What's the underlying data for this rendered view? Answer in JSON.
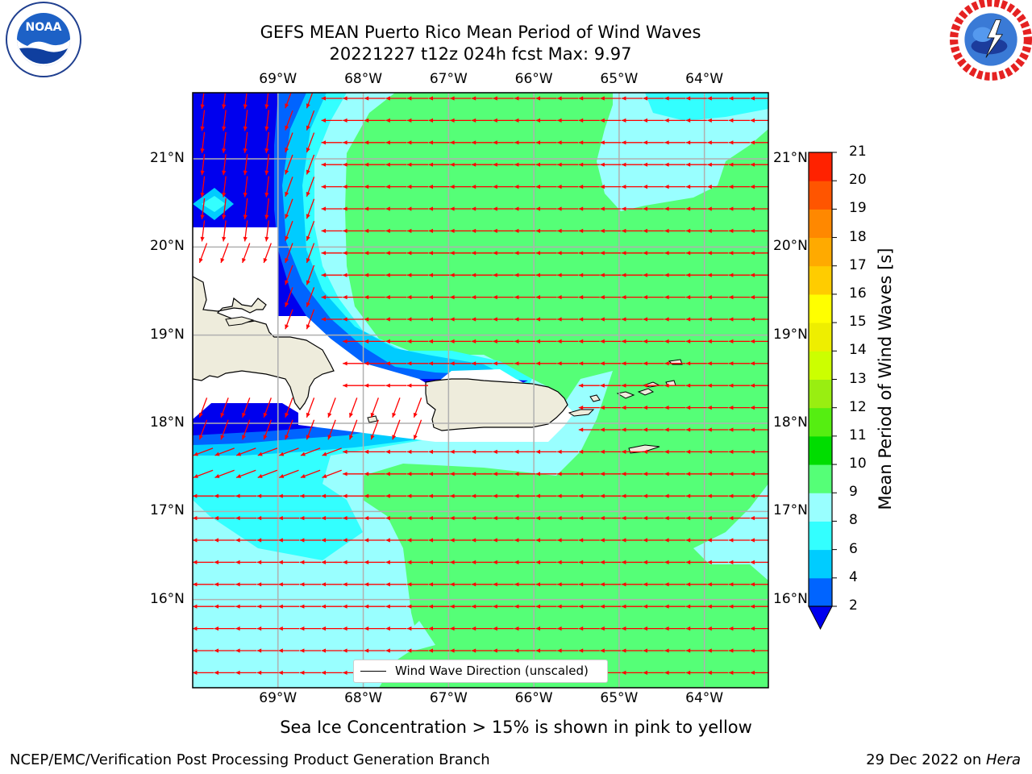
{
  "title_line1": "GEFS MEAN Puerto Rico Mean Period of Wind Waves",
  "title_line2": "20221227 t12z 024h fcst   Max: 9.97",
  "logos": {
    "left": "noaa-logo",
    "left_text": "NOAA",
    "right": "nws-logo",
    "right_text": "NATIONAL WEATHER SERVICE"
  },
  "map": {
    "lon_labels": [
      "69°W",
      "68°W",
      "67°W",
      "66°W",
      "65°W",
      "64°W"
    ],
    "lat_labels": [
      "21°N",
      "20°N",
      "19°N",
      "18°N",
      "17°N",
      "16°N"
    ],
    "lon_range": [
      -70.0,
      -63.25
    ],
    "lat_range": [
      15.0,
      21.75
    ],
    "wind_wave_direction": "westward",
    "vector_color": "#ff0000",
    "land_color": "#eeecdc"
  },
  "legend": {
    "label": "Wind Wave Direction (unscaled)"
  },
  "colorbar": {
    "title": "Mean Period of Wind Waves [s]",
    "tick_labels": [
      "2",
      "4",
      "6",
      "8",
      "9",
      "10",
      "11",
      "12",
      "13",
      "14",
      "15",
      "16",
      "17",
      "18",
      "19",
      "20",
      "21"
    ],
    "levels": [
      2,
      4,
      6,
      8,
      9,
      10,
      11,
      12,
      13,
      14,
      15,
      16,
      17,
      18,
      19,
      20,
      21
    ],
    "colors": [
      "#0064ff",
      "#00ccff",
      "#33ffff",
      "#99ffff",
      "#55ff77",
      "#00dd00",
      "#55ee11",
      "#99ee11",
      "#ccff00",
      "#eeee00",
      "#ffff00",
      "#ffcc00",
      "#ffaa00",
      "#ff8800",
      "#ff5500",
      "#ff2200"
    ],
    "under_color": "#0000ee"
  },
  "sea_ice_note": "Sea Ice Concentration > 15% is shown in pink to yellow",
  "footer_left": "NCEP/EMC/Verification Post Processing Product Generation Branch",
  "footer_right_prefix": "29 Dec 2022 on ",
  "footer_right_host": "Hera"
}
